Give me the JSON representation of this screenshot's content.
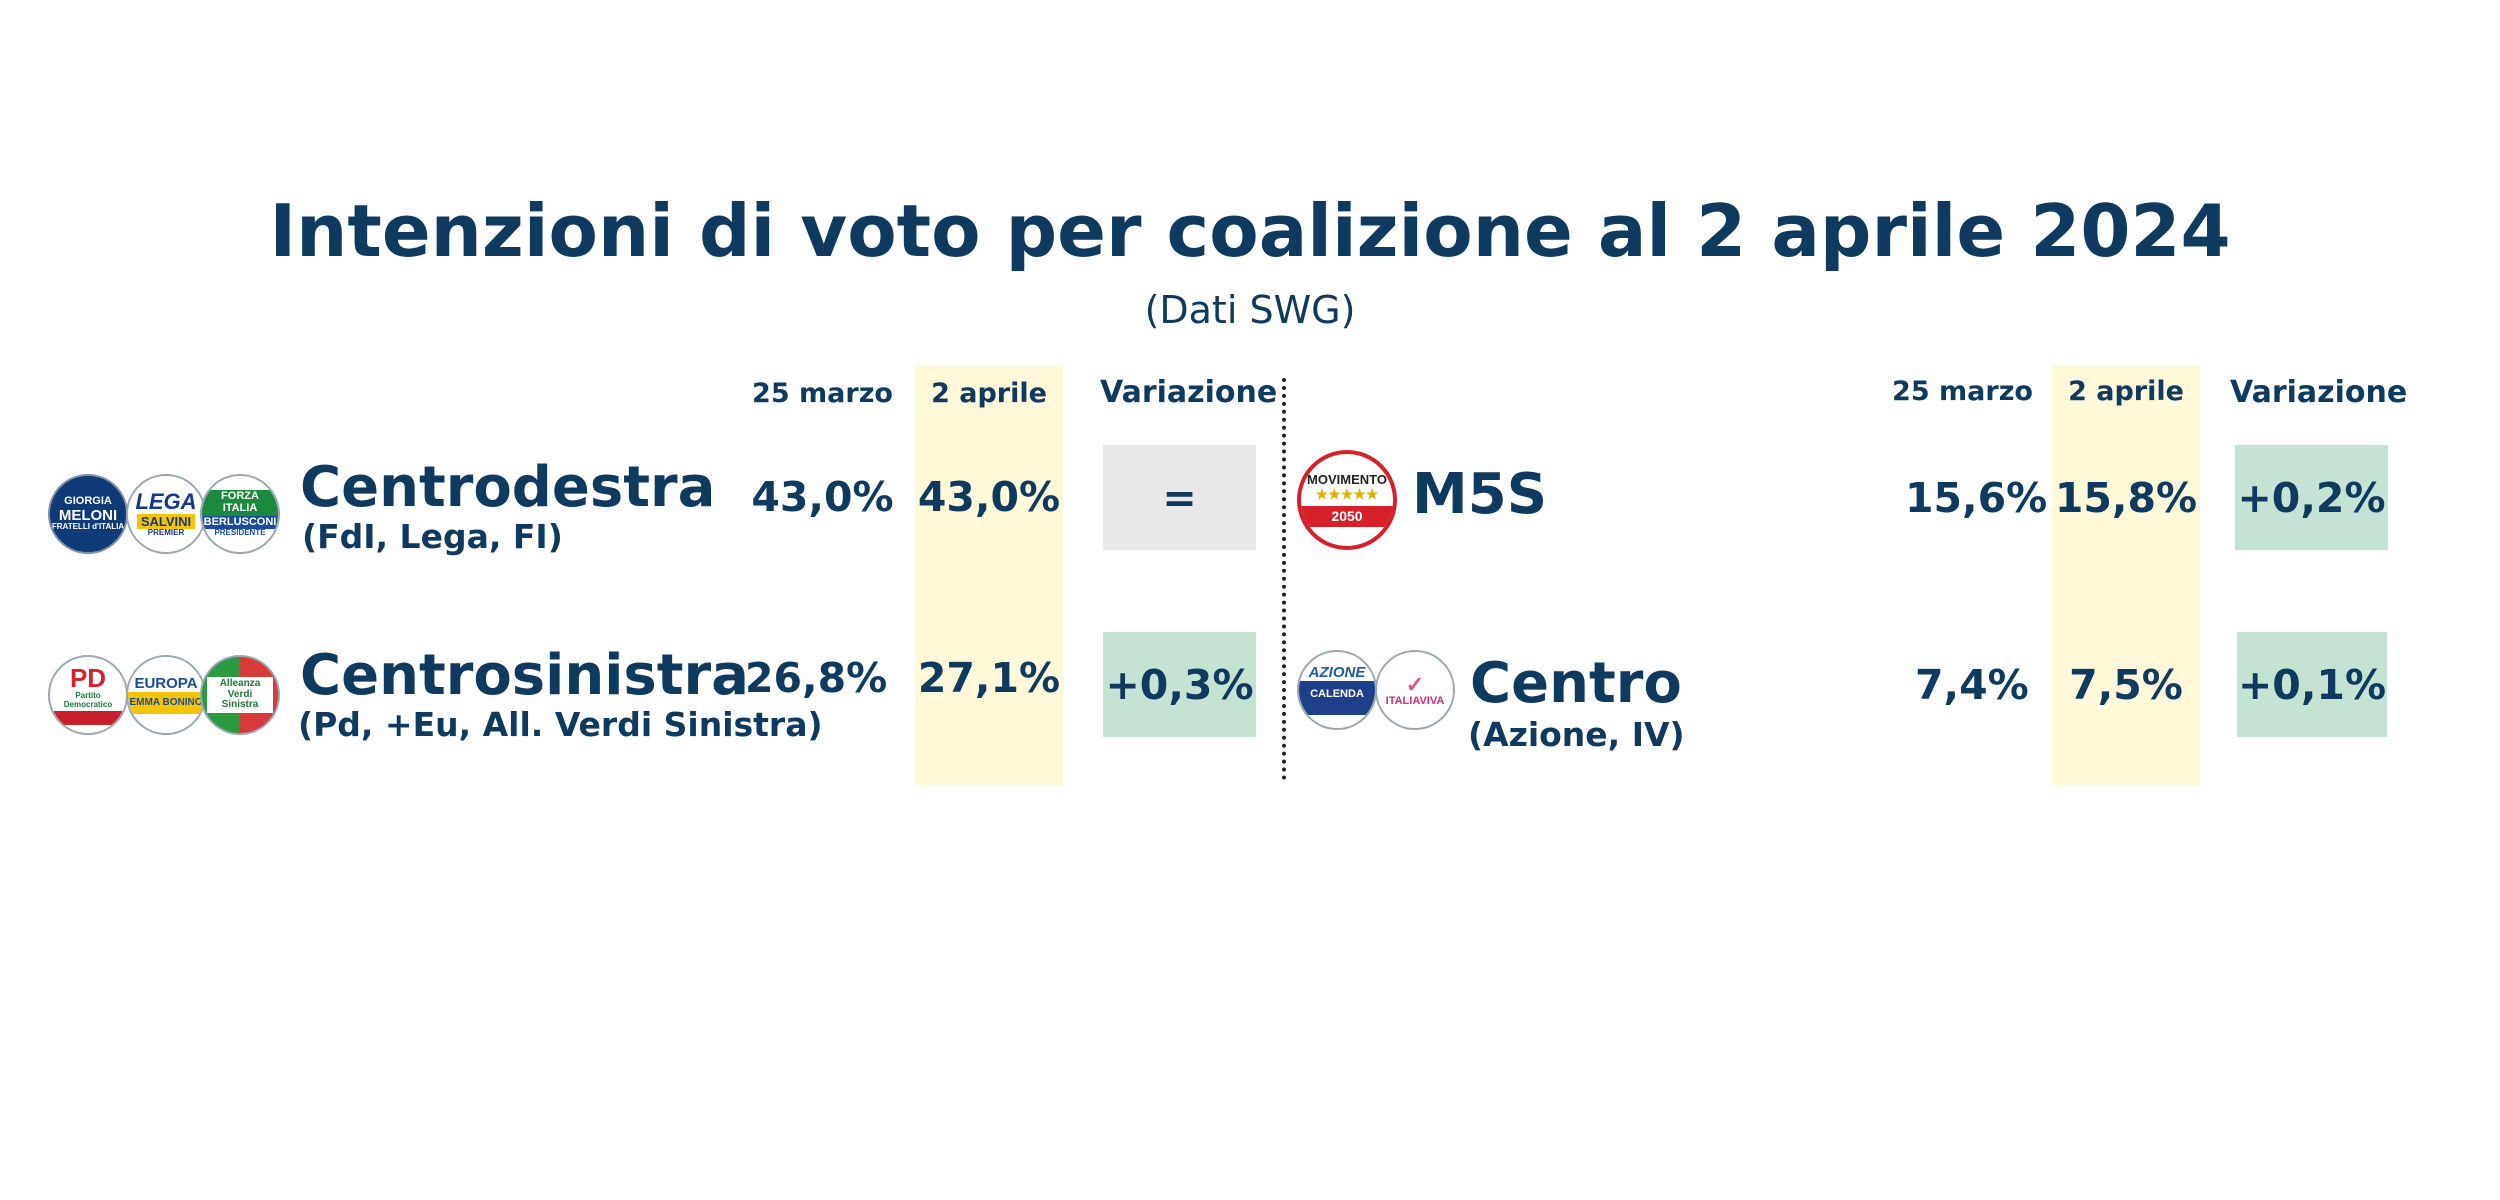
{
  "title": "Intenzioni di voto per coalizione al 2 aprile 2024",
  "subtitle": "(Dati SWG)",
  "headers": {
    "prev": "25 marzo",
    "curr": "2 aprile",
    "change": "Variazione"
  },
  "colors": {
    "text": "#0e3a60",
    "highlight": "#fff8d9",
    "positive": "#c5e3d2",
    "neutral": "#e9e9e9"
  },
  "rows": {
    "centrodestra": {
      "name": "Centrodestra",
      "parties": "(FdI, Lega, FI)",
      "prev": "43,0%",
      "curr": "43,0%",
      "change": "="
    },
    "centrosinistra": {
      "name": "Centrosinistra",
      "parties": "(Pd, +Eu, All. Verdi Sinistra)",
      "prev": "26,8%",
      "curr": "27,1%",
      "change": "+0,3%"
    },
    "m5s": {
      "name": "M5S",
      "prev": "15,6%",
      "curr": "15,8%",
      "change": "+0,2%"
    },
    "centro": {
      "name": "Centro",
      "parties": "(Azione, IV)",
      "prev": "7,4%",
      "curr": "7,5%",
      "change": "+0,1%"
    }
  },
  "logos": {
    "fdi": {
      "icon": "fdi-logo",
      "line1": "GIORGIA",
      "line2": "MELONI",
      "line3": "FRATELLI d'ITALIA"
    },
    "lega": {
      "icon": "lega-logo",
      "line1": "LEGA",
      "line2": "SALVINI",
      "line3": "PREMIER"
    },
    "fi": {
      "icon": "forza-italia-logo",
      "line1": "FORZA ITALIA",
      "line2": "BERLUSCONI",
      "line3": "PRESIDENTE"
    },
    "pd": {
      "icon": "pd-logo",
      "line1": "PD",
      "line2": "Partito Democratico"
    },
    "europa": {
      "icon": "piu-europa-logo",
      "line1": "EUROPA",
      "line2": "EMMA BONINO"
    },
    "avs": {
      "icon": "avs-logo",
      "line1": "Alleanza Verdi Sinistra"
    },
    "m5s": {
      "icon": "movimento-5-stelle-logo",
      "line1": "MOVIMENTO",
      "line2": "★★★★★",
      "line3": "2050"
    },
    "azione": {
      "icon": "azione-logo",
      "line1": "AZIONE",
      "line2": "CALENDA"
    },
    "iv": {
      "icon": "italia-viva-logo",
      "line1": "ITALIAVIVA"
    }
  }
}
